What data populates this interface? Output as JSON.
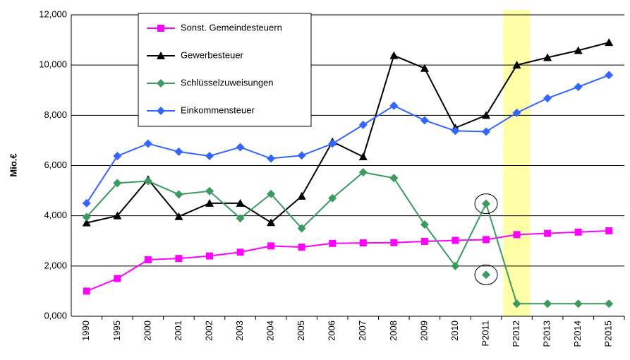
{
  "chart_data": {
    "type": "line",
    "y_label": "Mio.€",
    "categories": [
      "1990",
      "1995",
      "2000",
      "2001",
      "2002",
      "2003",
      "2004",
      "2005",
      "2006",
      "2007",
      "2008",
      "2009",
      "2010",
      "P2011",
      "P2012",
      "P2013",
      "P2014",
      "P2015"
    ],
    "ylim": [
      0,
      12000
    ],
    "yticks": [
      {
        "value": 0,
        "label": "0,000"
      },
      {
        "value": 2000,
        "label": "2,000"
      },
      {
        "value": 4000,
        "label": "4,000"
      },
      {
        "value": 6000,
        "label": "6,000"
      },
      {
        "value": 8000,
        "label": "8,000"
      },
      {
        "value": 10000,
        "label": "10,000"
      },
      {
        "value": 12000,
        "label": "12,000"
      }
    ],
    "grid": true,
    "legend": "upper-left",
    "highlight_index": 14,
    "circled_index": 13,
    "series": [
      {
        "name": "Sonst. Gemeindesteuern",
        "color": "#ff00ff",
        "marker": "square",
        "values": [
          1000,
          1500,
          2250,
          2300,
          2400,
          2550,
          2800,
          2750,
          2900,
          2920,
          2930,
          2980,
          3020,
          3050,
          3250,
          3300,
          3350,
          3400
        ]
      },
      {
        "name": "Gewerbesteuer",
        "color": "#000000",
        "marker": "triangle",
        "values": [
          3720,
          4000,
          5450,
          3970,
          4500,
          4500,
          3730,
          4780,
          6950,
          6350,
          10380,
          9870,
          7500,
          8000,
          10000,
          10300,
          10580,
          10900
        ]
      },
      {
        "name": "Schlüsselzuweisungen",
        "color": "#3a9a5f",
        "marker": "diamond",
        "values": [
          3950,
          5300,
          5380,
          4850,
          4980,
          3900,
          4870,
          3500,
          4700,
          5730,
          5500,
          3650,
          2000,
          4480,
          500,
          500,
          500,
          500
        ]
      },
      {
        "name": "Einkommensteuer",
        "color": "#3366ff",
        "marker": "diamond",
        "values": [
          4500,
          6380,
          6870,
          6550,
          6380,
          6730,
          6280,
          6400,
          6870,
          7620,
          8380,
          7800,
          7380,
          7350,
          8100,
          8680,
          9130,
          9600
        ]
      },
      {
        "color": "#3a9a5f",
        "marker": "diamond",
        "line": false,
        "values": [
          null,
          null,
          null,
          null,
          null,
          null,
          null,
          null,
          null,
          null,
          null,
          null,
          null,
          1650,
          null,
          null,
          null,
          null
        ]
      }
    ]
  }
}
